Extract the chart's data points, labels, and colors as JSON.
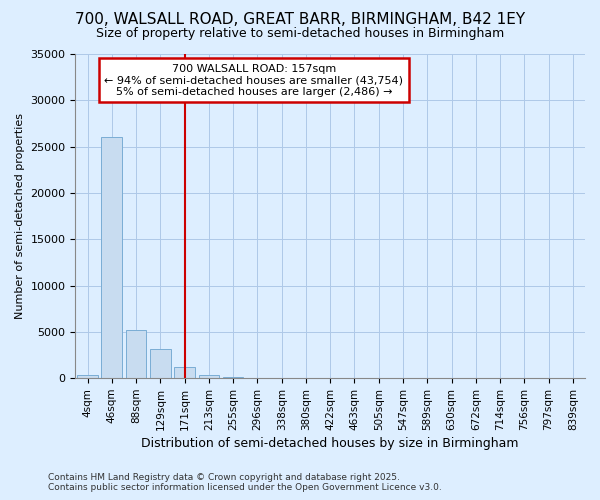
{
  "title": "700, WALSALL ROAD, GREAT BARR, BIRMINGHAM, B42 1EY",
  "subtitle": "Size of property relative to semi-detached houses in Birmingham",
  "xlabel": "Distribution of semi-detached houses by size in Birmingham",
  "ylabel": "Number of semi-detached properties",
  "annotation_title": "700 WALSALL ROAD: 157sqm",
  "annotation_line1": "← 94% of semi-detached houses are smaller (43,754)",
  "annotation_line2": "5% of semi-detached houses are larger (2,486) →",
  "footer1": "Contains HM Land Registry data © Crown copyright and database right 2025.",
  "footer2": "Contains public sector information licensed under the Open Government Licence v3.0.",
  "categories": [
    "4sqm",
    "46sqm",
    "88sqm",
    "129sqm",
    "171sqm",
    "213sqm",
    "255sqm",
    "296sqm",
    "338sqm",
    "380sqm",
    "422sqm",
    "463sqm",
    "505sqm",
    "547sqm",
    "589sqm",
    "630sqm",
    "672sqm",
    "714sqm",
    "756sqm",
    "797sqm",
    "839sqm"
  ],
  "values": [
    400,
    26000,
    5200,
    3200,
    1200,
    400,
    150,
    50,
    0,
    0,
    0,
    0,
    0,
    0,
    0,
    0,
    0,
    0,
    0,
    0,
    0
  ],
  "bar_color": "#c8dcf0",
  "bar_edge_color": "#7aadd4",
  "marker_line_index": 4,
  "marker_color": "#cc0000",
  "ylim": [
    0,
    35000
  ],
  "yticks": [
    0,
    5000,
    10000,
    15000,
    20000,
    25000,
    30000,
    35000
  ],
  "bg_color": "#ddeeff",
  "plot_bg_color": "#ddeeff",
  "grid_color": "#aec8e8",
  "annotation_box_color": "#ffffff",
  "annotation_box_edge": "#cc0000",
  "title_fontsize": 11,
  "subtitle_fontsize": 9
}
